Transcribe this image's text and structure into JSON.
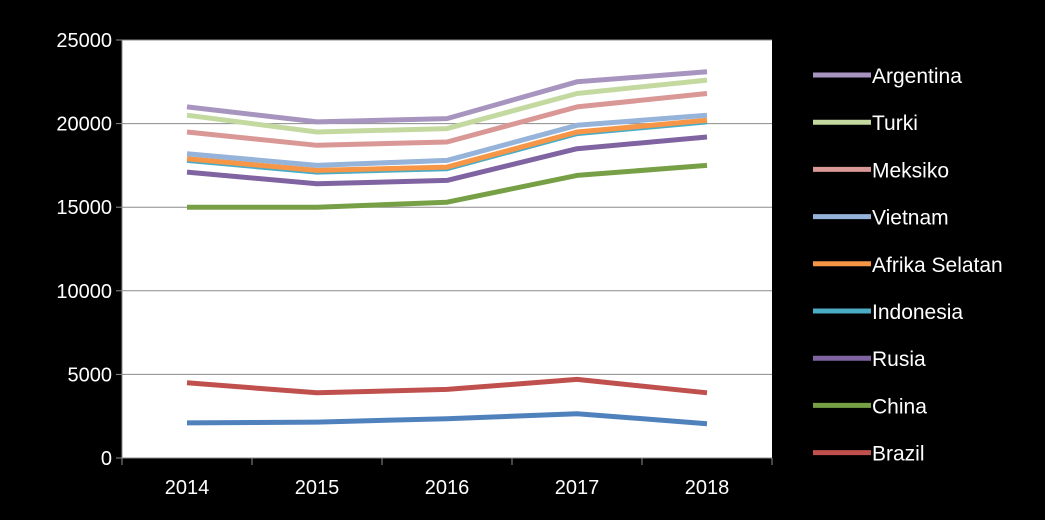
{
  "chart_data": {
    "type": "line",
    "title": "",
    "xlabel": "",
    "ylabel": "",
    "x": [
      "2014",
      "2015",
      "2016",
      "2017",
      "2018"
    ],
    "ylim": [
      0,
      25000
    ],
    "yticks": [
      0,
      5000,
      10000,
      15000,
      20000,
      25000
    ],
    "grid": "horizontal",
    "legend": "right",
    "series": [
      {
        "name": "Argentina",
        "color": "#a895bf",
        "values": [
          21000,
          20100,
          20300,
          22500,
          23100
        ]
      },
      {
        "name": "Turki",
        "color": "#c4d9a0",
        "values": [
          20500,
          19500,
          19700,
          21800,
          22600
        ]
      },
      {
        "name": "Meksiko",
        "color": "#d99795",
        "values": [
          19500,
          18700,
          18900,
          21000,
          21800
        ]
      },
      {
        "name": "Vietnam",
        "color": "#96b3d9",
        "values": [
          18200,
          17500,
          17800,
          19900,
          20500
        ]
      },
      {
        "name": "Afrika Selatan",
        "color": "#f79646",
        "values": [
          17900,
          17200,
          17400,
          19500,
          20200
        ]
      },
      {
        "name": "Indonesia",
        "color": "#4bacc6",
        "values": [
          17800,
          17100,
          17300,
          19400,
          20100
        ]
      },
      {
        "name": "Rusia",
        "color": "#8064a2",
        "values": [
          17100,
          16400,
          16600,
          18500,
          19200
        ]
      },
      {
        "name": "China",
        "color": "#77a046",
        "values": [
          15000,
          15000,
          15300,
          16900,
          17500
        ]
      },
      {
        "name": "Brazil",
        "color": "#c0504d",
        "values": [
          4500,
          3900,
          4100,
          4700,
          3900
        ]
      },
      {
        "name": "",
        "color": "#4f81bd",
        "values": [
          2100,
          2150,
          2350,
          2650,
          2050
        ]
      }
    ]
  }
}
